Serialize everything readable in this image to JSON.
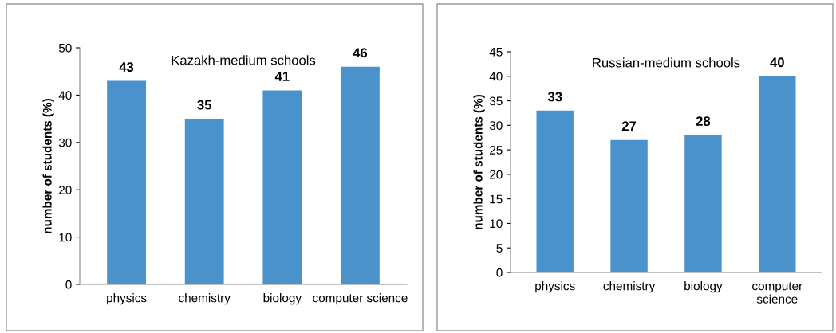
{
  "chart_data": [
    {
      "type": "bar",
      "title": "Kazakh-medium schools",
      "ylabel": "number of students (%)",
      "categories": [
        "physics",
        "chemistry",
        "biology",
        "computer science"
      ],
      "values": [
        43,
        35,
        41,
        46
      ],
      "color": "#4a92cc",
      "ylim": [
        0,
        50
      ],
      "yticks": [
        0,
        10,
        20,
        30,
        40,
        50
      ],
      "data_labels": true,
      "grid": false,
      "legend": false
    },
    {
      "type": "bar",
      "title": "Russian-medium schools",
      "ylabel": "number of students (%)",
      "categories": [
        "physics",
        "chemistry",
        "biology",
        "computer\nscience"
      ],
      "values": [
        33,
        27,
        28,
        40
      ],
      "color": "#4a92cc",
      "ylim": [
        0,
        45
      ],
      "yticks": [
        0,
        5,
        10,
        15,
        20,
        25,
        30,
        35,
        40,
        45
      ],
      "data_labels": true,
      "grid": false,
      "legend": false
    }
  ]
}
